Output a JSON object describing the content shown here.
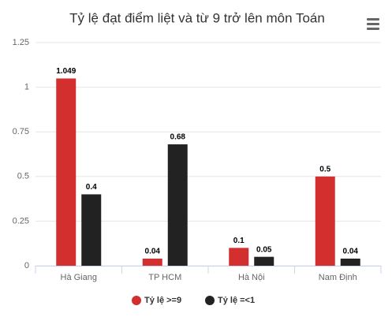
{
  "chart_data": {
    "type": "bar",
    "title": "Tỷ lệ đạt điểm liệt và từ 9 trở lên môn Toán",
    "categories": [
      "Hà Giang",
      "TP HCM",
      "Hà Nội",
      "Nam Định"
    ],
    "series": [
      {
        "name": "Tỷ lệ >=9",
        "color": "#d32f2f",
        "values": [
          1.049,
          0.04,
          0.1,
          0.5
        ]
      },
      {
        "name": "Tỷ lệ =<1",
        "color": "#222222",
        "values": [
          0.4,
          0.68,
          0.05,
          0.04
        ]
      }
    ],
    "ylim": [
      0,
      1.25
    ],
    "yticks": [
      0,
      0.25,
      0.5,
      0.75,
      1,
      1.25
    ],
    "grid": true,
    "legend": "bottom"
  }
}
